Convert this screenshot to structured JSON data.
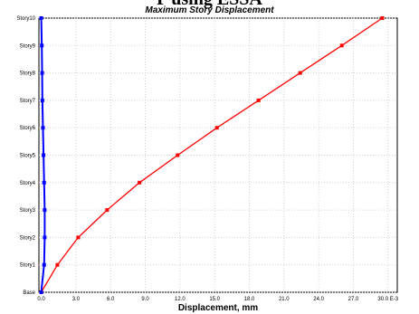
{
  "header": {
    "caption_fragment": "P using ESSA",
    "title": "Maximum Story Displacement"
  },
  "colors": {
    "series_x": "#ff0000",
    "series_y": "#0000ff",
    "grid": "#d0d0d0",
    "axis": "#000000"
  },
  "chart_data": {
    "type": "line",
    "title": "Maximum Story Displacement",
    "xlabel": "Displacement, mm",
    "ylabel": "",
    "x_tick_labels": [
      "0.0",
      "3.0",
      "6.0",
      "9.0",
      "12.0",
      "15.0",
      "18.0",
      "21.0",
      "24.0",
      "27.0",
      "30.0 E-3"
    ],
    "x_ticks": [
      0,
      3,
      6,
      9,
      12,
      15,
      18,
      21,
      24,
      27,
      30
    ],
    "xlim": [
      -0.2,
      30.8
    ],
    "categories": [
      "Base",
      "Story1",
      "Story2",
      "Story3",
      "Story4",
      "Story5",
      "Story6",
      "Story7",
      "Story8",
      "Story9",
      "Story10"
    ],
    "grid": true,
    "series": [
      {
        "color": "#ff0000",
        "values": [
          0.0,
          1.4,
          3.2,
          5.7,
          8.5,
          11.8,
          15.2,
          18.8,
          22.4,
          26.0,
          29.5
        ]
      },
      {
        "color": "#0000ff",
        "values": [
          0.0,
          0.25,
          0.3,
          0.3,
          0.25,
          0.2,
          0.15,
          0.1,
          0.08,
          0.05,
          0.0
        ]
      }
    ]
  }
}
